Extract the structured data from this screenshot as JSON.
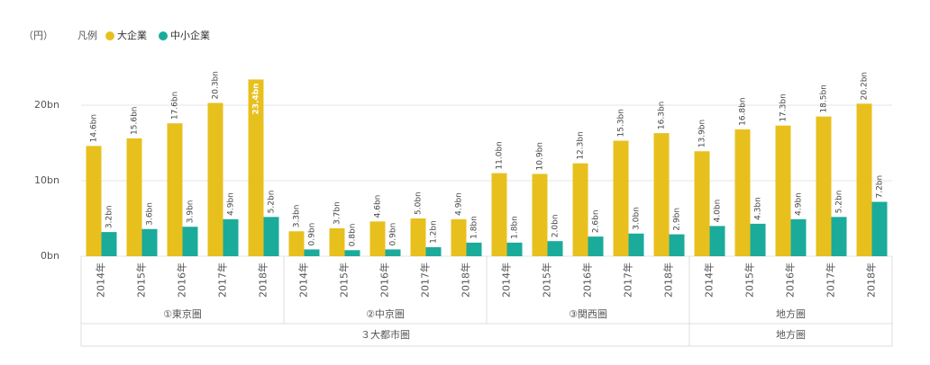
{
  "chart_data": {
    "type": "bar",
    "unit_label": "（円）",
    "legend_title": "凡例",
    "categories": [
      "2014年",
      "2015年",
      "2016年",
      "2017年",
      "2018年",
      "2014年",
      "2015年",
      "2016年",
      "2017年",
      "2018年",
      "2014年",
      "2015年",
      "2016年",
      "2017年",
      "2018年",
      "2014年",
      "2015年",
      "2016年",
      "2017年",
      "2018年"
    ],
    "groups": [
      {
        "label": "①東京圏",
        "span": 5
      },
      {
        "label": "②中京圏",
        "span": 5
      },
      {
        "label": "③関西圏",
        "span": 5
      },
      {
        "label": "地方圏",
        "span": 5
      }
    ],
    "supergroups": [
      {
        "label": "３大都市圏",
        "span": 15
      },
      {
        "label": "地方圏",
        "span": 5
      }
    ],
    "series": [
      {
        "name": "大企業",
        "color": "#e8c01e",
        "values": [
          14.6,
          15.6,
          17.6,
          20.3,
          23.4,
          3.3,
          3.7,
          4.6,
          5.0,
          4.9,
          11.0,
          10.9,
          12.3,
          15.3,
          16.3,
          13.9,
          16.8,
          17.3,
          18.5,
          20.2
        ],
        "value_labels": [
          "14.6bn",
          "15.6bn",
          "17.6bn",
          "20.3bn",
          "23.4bn",
          "3.3bn",
          "3.7bn",
          "4.6bn",
          "5.0bn",
          "4.9bn",
          "11.0bn",
          "10.9bn",
          "12.3bn",
          "15.3bn",
          "16.3bn",
          "13.9bn",
          "16.8bn",
          "17.3bn",
          "18.5bn",
          "20.2bn"
        ]
      },
      {
        "name": "中小企業",
        "color": "#1aab9b",
        "values": [
          3.2,
          3.6,
          3.9,
          4.9,
          5.2,
          0.9,
          0.8,
          0.9,
          1.2,
          1.8,
          1.8,
          2.0,
          2.6,
          3.0,
          2.9,
          4.0,
          4.3,
          4.9,
          5.2,
          7.2
        ],
        "value_labels": [
          "3.2bn",
          "3.6bn",
          "3.9bn",
          "4.9bn",
          "5.2bn",
          "0.9bn",
          "0.8bn",
          "0.9bn",
          "1.2bn",
          "1.8bn",
          "1.8bn",
          "2.0bn",
          "2.6bn",
          "3.0bn",
          "2.9bn",
          "4.0bn",
          "4.3bn",
          "4.9bn",
          "5.2bn",
          "7.2bn"
        ]
      }
    ],
    "ylim": [
      0,
      25
    ],
    "yticks": [
      {
        "value": 0,
        "label": "0bn"
      },
      {
        "value": 10,
        "label": "10bn"
      },
      {
        "value": 20,
        "label": "20bn"
      }
    ],
    "grid": true
  }
}
